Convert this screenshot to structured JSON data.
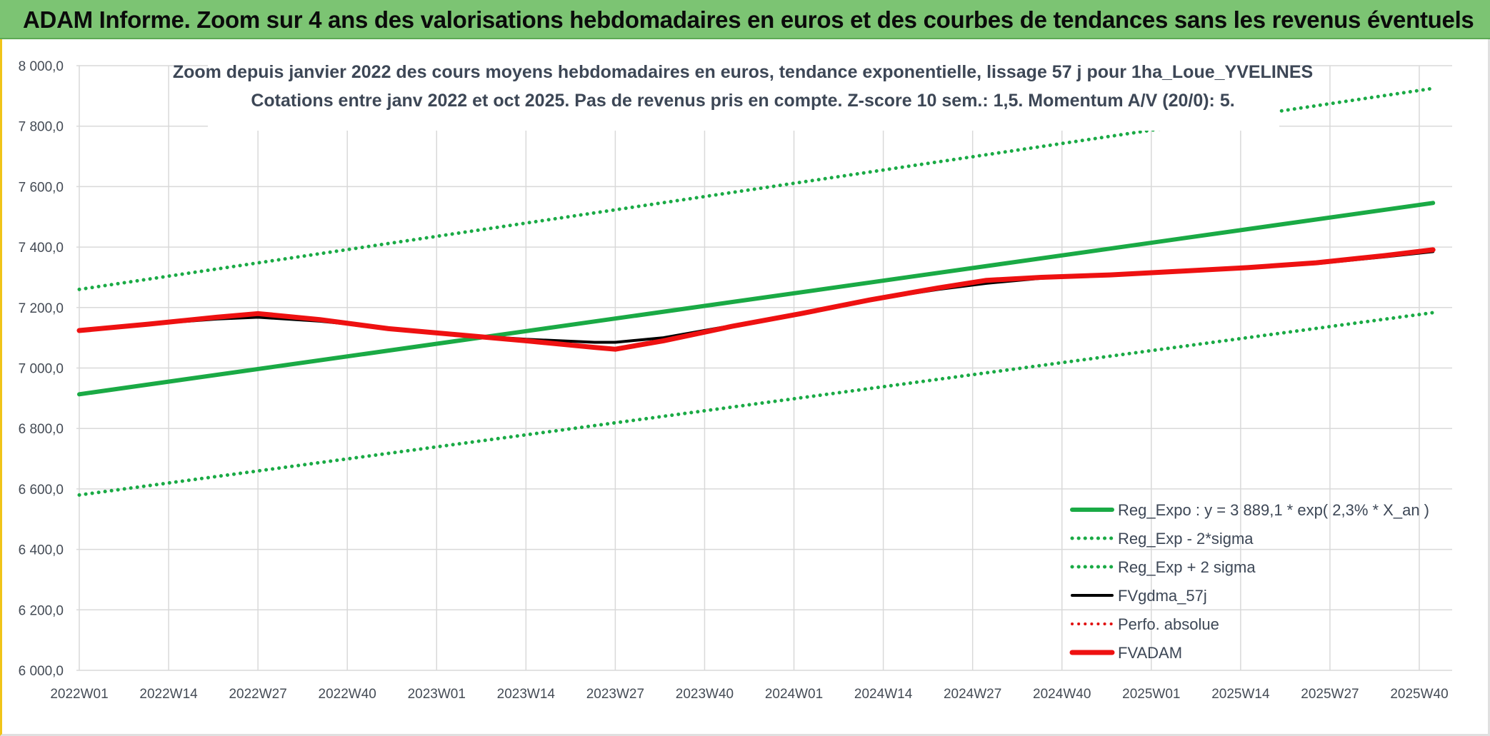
{
  "banner": {
    "title": "ADAM Informe. Zoom sur 4 ans des valorisations hebdomadaires en euros et des courbes de tendances sans les revenus éventuels"
  },
  "colors": {
    "banner_bg": "#7cc473",
    "trend_green": "#1aaa45",
    "band_green": "#1aaa45",
    "fv57_black": "#000000",
    "fvadam_red": "#ee1111",
    "perf_red": "#e01010",
    "grid": "#d9d9d9"
  },
  "chart_data": {
    "type": "line",
    "title": "Zoom depuis janvier 2022 des cours moyens hebdomadaires en euros, tendance exponentielle, lissage 57 j pour 1ha_Loue_YVELINES",
    "subtitle": "Cotations entre janv 2022 et oct 2025. Pas de revenus pris en compte. Z-score 10 sem.: 1,5. Momentum A/V (20/0): 5.",
    "ylim": [
      6000,
      8000
    ],
    "ytick_step": 200,
    "yticks": [
      "6 000,0",
      "6 200,0",
      "6 400,0",
      "6 600,0",
      "6 800,0",
      "7 000,0",
      "7 200,0",
      "7 400,0",
      "7 600,0",
      "7 800,0",
      "8 000,0"
    ],
    "x_range_weeks": [
      0,
      197
    ],
    "xticks": [
      {
        "label": "2022W01",
        "week": 0
      },
      {
        "label": "2022W14",
        "week": 13
      },
      {
        "label": "2022W27",
        "week": 26
      },
      {
        "label": "2022W40",
        "week": 39
      },
      {
        "label": "2023W01",
        "week": 52
      },
      {
        "label": "2023W14",
        "week": 65
      },
      {
        "label": "2023W27",
        "week": 78
      },
      {
        "label": "2023W40",
        "week": 91
      },
      {
        "label": "2024W01",
        "week": 104
      },
      {
        "label": "2024W14",
        "week": 117
      },
      {
        "label": "2024W27",
        "week": 130
      },
      {
        "label": "2024W40",
        "week": 143
      },
      {
        "label": "2025W01",
        "week": 156
      },
      {
        "label": "2025W14",
        "week": 169
      },
      {
        "label": "2025W27",
        "week": 182
      },
      {
        "label": "2025W40",
        "week": 195
      }
    ],
    "grid": true,
    "legend_position": "bottom-right",
    "series": [
      {
        "name": "Reg_Expo : y = 3 889,1 * exp( 2,3% *  X_an )",
        "style": "solid",
        "width": 6,
        "color": "#1aaa45",
        "points": [
          [
            0,
            6913
          ],
          [
            197,
            7546
          ]
        ]
      },
      {
        "name": "Reg_Exp - 2*sigma",
        "style": "dotted",
        "width": 5,
        "color": "#1aaa45",
        "points": [
          [
            0,
            6580
          ],
          [
            197,
            7183
          ]
        ]
      },
      {
        "name": "Reg_Exp + 2 sigma",
        "style": "dotted",
        "width": 5,
        "color": "#1aaa45",
        "points": [
          [
            0,
            7260
          ],
          [
            197,
            7925
          ]
        ]
      },
      {
        "name": "FVgdma_57j",
        "style": "solid",
        "width": 4,
        "color": "#000000",
        "points": [
          [
            0,
            7124
          ],
          [
            10,
            7145
          ],
          [
            20,
            7162
          ],
          [
            26,
            7168
          ],
          [
            35,
            7155
          ],
          [
            45,
            7132
          ],
          [
            55,
            7110
          ],
          [
            65,
            7095
          ],
          [
            75,
            7085
          ],
          [
            78,
            7085
          ],
          [
            85,
            7100
          ],
          [
            95,
            7140
          ],
          [
            105,
            7180
          ],
          [
            115,
            7225
          ],
          [
            125,
            7260
          ],
          [
            132,
            7280
          ],
          [
            140,
            7297
          ],
          [
            150,
            7308
          ],
          [
            160,
            7320
          ],
          [
            170,
            7332
          ],
          [
            180,
            7345
          ],
          [
            190,
            7368
          ],
          [
            197,
            7385
          ]
        ]
      },
      {
        "name": "Perfo. absolue",
        "style": "dotted",
        "width": 4,
        "color": "#e01010",
        "points": [
          [
            0,
            7124
          ],
          [
            10,
            7145
          ],
          [
            20,
            7168
          ],
          [
            26,
            7180
          ],
          [
            35,
            7160
          ],
          [
            45,
            7130
          ],
          [
            55,
            7110
          ],
          [
            65,
            7090
          ],
          [
            75,
            7068
          ],
          [
            78,
            7062
          ],
          [
            85,
            7090
          ],
          [
            95,
            7138
          ],
          [
            105,
            7180
          ],
          [
            115,
            7225
          ],
          [
            125,
            7265
          ],
          [
            132,
            7290
          ],
          [
            140,
            7300
          ],
          [
            150,
            7308
          ],
          [
            160,
            7320
          ],
          [
            170,
            7332
          ],
          [
            180,
            7348
          ],
          [
            190,
            7372
          ],
          [
            197,
            7391
          ]
        ]
      },
      {
        "name": "FVADAM",
        "style": "solid",
        "width": 7,
        "color": "#ee1111",
        "points": [
          [
            0,
            7124
          ],
          [
            10,
            7145
          ],
          [
            20,
            7168
          ],
          [
            26,
            7180
          ],
          [
            35,
            7160
          ],
          [
            45,
            7130
          ],
          [
            55,
            7110
          ],
          [
            65,
            7090
          ],
          [
            75,
            7068
          ],
          [
            78,
            7062
          ],
          [
            85,
            7090
          ],
          [
            95,
            7138
          ],
          [
            105,
            7180
          ],
          [
            115,
            7225
          ],
          [
            125,
            7265
          ],
          [
            132,
            7290
          ],
          [
            140,
            7300
          ],
          [
            150,
            7308
          ],
          [
            160,
            7320
          ],
          [
            170,
            7332
          ],
          [
            180,
            7348
          ],
          [
            190,
            7372
          ],
          [
            197,
            7391
          ]
        ]
      }
    ]
  }
}
